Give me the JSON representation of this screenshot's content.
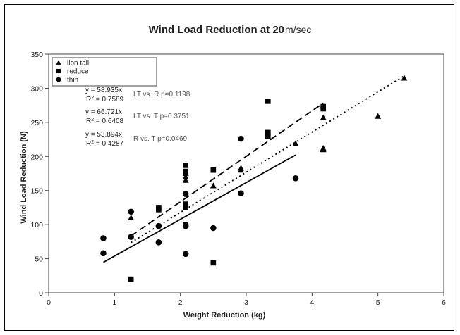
{
  "chart_data": {
    "type": "scatter",
    "title": "Wind Load Reduction at 20",
    "title_unit": "m/sec",
    "xlabel": "Weight Reduction (kg)",
    "ylabel": "Wind Load Reduction (N)",
    "xlim": [
      0,
      6
    ],
    "ylim": [
      0,
      350
    ],
    "x_ticks": [
      0,
      1,
      2,
      3,
      4,
      5,
      6
    ],
    "y_ticks": [
      0,
      50,
      100,
      150,
      200,
      250,
      300,
      350
    ],
    "grid": false,
    "legend_position": "top-left",
    "series": [
      {
        "name": "lion tail",
        "marker": "triangle",
        "x": [
          1.25,
          2.08,
          2.08,
          2.08,
          2.5,
          2.92,
          2.92,
          3.75,
          4.17,
          4.17,
          4.17,
          5.0,
          5.4
        ],
        "y": [
          110,
          165,
          170,
          175,
          157,
          180,
          183,
          219,
          210,
          212,
          257,
          259,
          315
        ]
      },
      {
        "name": "reduce",
        "marker": "square",
        "x": [
          1.25,
          1.67,
          1.67,
          2.08,
          2.08,
          2.08,
          2.08,
          2.5,
          2.5,
          3.33,
          3.33,
          3.33,
          4.17,
          4.17
        ],
        "y": [
          20,
          125,
          122,
          178,
          187,
          130,
          125,
          180,
          44,
          230,
          235,
          281,
          270,
          273
        ]
      },
      {
        "name": "thin",
        "marker": "circle",
        "x": [
          0.83,
          0.83,
          1.25,
          1.25,
          1.67,
          1.67,
          2.08,
          2.08,
          2.08,
          2.08,
          2.5,
          2.92,
          2.92,
          3.75
        ],
        "y": [
          80,
          58,
          119,
          82,
          98,
          74,
          145,
          100,
          98,
          57,
          95,
          146,
          226,
          168
        ]
      }
    ],
    "trendlines": [
      {
        "series": "lion tail",
        "slope": 58.935,
        "style": "dotted",
        "x_range": [
          1.25,
          5.4
        ]
      },
      {
        "series": "reduce",
        "slope": 66.721,
        "style": "dashed",
        "x_range": [
          1.25,
          4.17
        ]
      },
      {
        "series": "thin",
        "slope": 53.894,
        "style": "solid",
        "x_range": [
          0.83,
          3.75
        ]
      }
    ],
    "annotations": [
      {
        "eq": "y = 58.935x",
        "r2": "R",
        "r2_value": " = 0.7589",
        "note": "LT vs. R p=0.1198"
      },
      {
        "eq": "y = 66.721x",
        "r2": "R",
        "r2_value": " = 0.6408",
        "note": "LT vs. T p=0.3751"
      },
      {
        "eq": "y = 53.894x",
        "r2": "R",
        "r2_value": " = 0.4287",
        "note": "R vs. T p=0.0469"
      }
    ]
  }
}
